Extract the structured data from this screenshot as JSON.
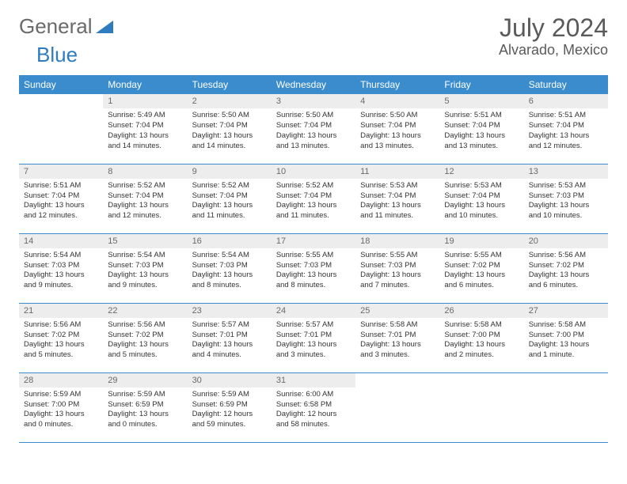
{
  "logo": {
    "text1": "General",
    "text2": "Blue"
  },
  "title": "July 2024",
  "location": "Alvarado, Mexico",
  "colors": {
    "header_bg": "#3b8ccc",
    "header_fg": "#ffffff",
    "daynum_bg": "#ededed",
    "daynum_fg": "#6a6a6a",
    "text": "#333333",
    "logo_gray": "#6a6a6a",
    "logo_blue": "#2f7bbf",
    "border": "#3b8ccc"
  },
  "day_headers": [
    "Sunday",
    "Monday",
    "Tuesday",
    "Wednesday",
    "Thursday",
    "Friday",
    "Saturday"
  ],
  "weeks": [
    [
      null,
      {
        "n": "1",
        "sunrise": "5:49 AM",
        "sunset": "7:04 PM",
        "daylight": "13 hours and 14 minutes."
      },
      {
        "n": "2",
        "sunrise": "5:50 AM",
        "sunset": "7:04 PM",
        "daylight": "13 hours and 14 minutes."
      },
      {
        "n": "3",
        "sunrise": "5:50 AM",
        "sunset": "7:04 PM",
        "daylight": "13 hours and 13 minutes."
      },
      {
        "n": "4",
        "sunrise": "5:50 AM",
        "sunset": "7:04 PM",
        "daylight": "13 hours and 13 minutes."
      },
      {
        "n": "5",
        "sunrise": "5:51 AM",
        "sunset": "7:04 PM",
        "daylight": "13 hours and 13 minutes."
      },
      {
        "n": "6",
        "sunrise": "5:51 AM",
        "sunset": "7:04 PM",
        "daylight": "13 hours and 12 minutes."
      }
    ],
    [
      {
        "n": "7",
        "sunrise": "5:51 AM",
        "sunset": "7:04 PM",
        "daylight": "13 hours and 12 minutes."
      },
      {
        "n": "8",
        "sunrise": "5:52 AM",
        "sunset": "7:04 PM",
        "daylight": "13 hours and 12 minutes."
      },
      {
        "n": "9",
        "sunrise": "5:52 AM",
        "sunset": "7:04 PM",
        "daylight": "13 hours and 11 minutes."
      },
      {
        "n": "10",
        "sunrise": "5:52 AM",
        "sunset": "7:04 PM",
        "daylight": "13 hours and 11 minutes."
      },
      {
        "n": "11",
        "sunrise": "5:53 AM",
        "sunset": "7:04 PM",
        "daylight": "13 hours and 11 minutes."
      },
      {
        "n": "12",
        "sunrise": "5:53 AM",
        "sunset": "7:04 PM",
        "daylight": "13 hours and 10 minutes."
      },
      {
        "n": "13",
        "sunrise": "5:53 AM",
        "sunset": "7:03 PM",
        "daylight": "13 hours and 10 minutes."
      }
    ],
    [
      {
        "n": "14",
        "sunrise": "5:54 AM",
        "sunset": "7:03 PM",
        "daylight": "13 hours and 9 minutes."
      },
      {
        "n": "15",
        "sunrise": "5:54 AM",
        "sunset": "7:03 PM",
        "daylight": "13 hours and 9 minutes."
      },
      {
        "n": "16",
        "sunrise": "5:54 AM",
        "sunset": "7:03 PM",
        "daylight": "13 hours and 8 minutes."
      },
      {
        "n": "17",
        "sunrise": "5:55 AM",
        "sunset": "7:03 PM",
        "daylight": "13 hours and 8 minutes."
      },
      {
        "n": "18",
        "sunrise": "5:55 AM",
        "sunset": "7:03 PM",
        "daylight": "13 hours and 7 minutes."
      },
      {
        "n": "19",
        "sunrise": "5:55 AM",
        "sunset": "7:02 PM",
        "daylight": "13 hours and 6 minutes."
      },
      {
        "n": "20",
        "sunrise": "5:56 AM",
        "sunset": "7:02 PM",
        "daylight": "13 hours and 6 minutes."
      }
    ],
    [
      {
        "n": "21",
        "sunrise": "5:56 AM",
        "sunset": "7:02 PM",
        "daylight": "13 hours and 5 minutes."
      },
      {
        "n": "22",
        "sunrise": "5:56 AM",
        "sunset": "7:02 PM",
        "daylight": "13 hours and 5 minutes."
      },
      {
        "n": "23",
        "sunrise": "5:57 AM",
        "sunset": "7:01 PM",
        "daylight": "13 hours and 4 minutes."
      },
      {
        "n": "24",
        "sunrise": "5:57 AM",
        "sunset": "7:01 PM",
        "daylight": "13 hours and 3 minutes."
      },
      {
        "n": "25",
        "sunrise": "5:58 AM",
        "sunset": "7:01 PM",
        "daylight": "13 hours and 3 minutes."
      },
      {
        "n": "26",
        "sunrise": "5:58 AM",
        "sunset": "7:00 PM",
        "daylight": "13 hours and 2 minutes."
      },
      {
        "n": "27",
        "sunrise": "5:58 AM",
        "sunset": "7:00 PM",
        "daylight": "13 hours and 1 minute."
      }
    ],
    [
      {
        "n": "28",
        "sunrise": "5:59 AM",
        "sunset": "7:00 PM",
        "daylight": "13 hours and 0 minutes."
      },
      {
        "n": "29",
        "sunrise": "5:59 AM",
        "sunset": "6:59 PM",
        "daylight": "13 hours and 0 minutes."
      },
      {
        "n": "30",
        "sunrise": "5:59 AM",
        "sunset": "6:59 PM",
        "daylight": "12 hours and 59 minutes."
      },
      {
        "n": "31",
        "sunrise": "6:00 AM",
        "sunset": "6:58 PM",
        "daylight": "12 hours and 58 minutes."
      },
      null,
      null,
      null
    ]
  ]
}
